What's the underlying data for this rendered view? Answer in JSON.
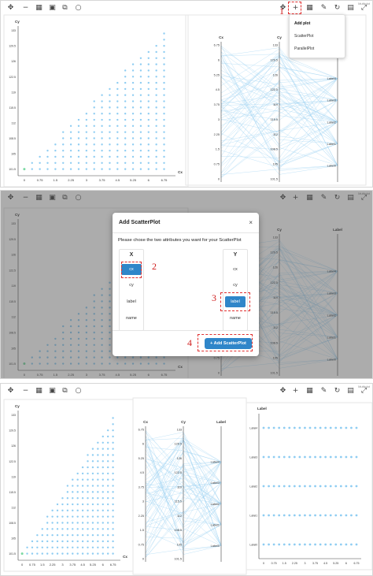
{
  "toolbar_tag": "Multiplot",
  "toolbar_icons": [
    "move-arrows-icon",
    "minus-icon",
    "grid-icon",
    "image-icon",
    "swap-icon",
    "circle-icon"
  ],
  "toolbar_right_icons": [
    "move-arrows-icon",
    "plus-icon",
    "table-icon",
    "brush-icon",
    "refresh-icon",
    "save-icon",
    "fullscreen-icon"
  ],
  "scatter": {
    "title_x": "Cx",
    "title_y": "Cy",
    "x_ticks": [
      "0",
      "0.75",
      "1.5",
      "2.25",
      "3",
      "3.75",
      "4.5",
      "5.25",
      "6",
      "6.75"
    ],
    "y_ticks": [
      "101.5",
      "105",
      "108.5",
      "112",
      "115.5",
      "119",
      "122.5",
      "126",
      "129.5",
      "133"
    ],
    "xlim": [
      -0.3,
      7.3
    ],
    "ylim": [
      100,
      134
    ],
    "point_color": "#8fcdf2"
  },
  "parallel": {
    "axes": [
      "Cx",
      "Cy",
      "Label"
    ],
    "cx_ticks": [
      "0",
      "0.75",
      "1.5",
      "2.25",
      "3",
      "3.75",
      "4.5",
      "5.25",
      "6",
      "6.75"
    ],
    "cy_ticks": [
      "101.5",
      "105",
      "108.5",
      "112",
      "115.5",
      "119",
      "122.5",
      "126",
      "129.5",
      "133"
    ],
    "label_ticks": [
      "Label0",
      "Label1",
      "Label2",
      "Label3",
      "Label4"
    ],
    "line_color": "#9fd3f3"
  },
  "labelplot": {
    "title_y": "Label",
    "x_ticks": [
      "0",
      "0.75",
      "1.5",
      "2.25",
      "3",
      "3.75",
      "4.5",
      "5.25",
      "6",
      "6.75"
    ],
    "y_ticks": [
      "Label0",
      "Label1",
      "Label2",
      "Label3",
      "Label4"
    ]
  },
  "dropdown": {
    "items": [
      "Add plot",
      "ScatterPlot",
      "ParallelPlot"
    ]
  },
  "annotations": [
    "1",
    "2",
    "3",
    "4"
  ],
  "modal": {
    "title": "Add ScatterPlot",
    "close": "×",
    "description": "Please chose the two attributes you want for your ScatterPlot",
    "x_header": "X",
    "y_header": "Y",
    "x_options": [
      "cx",
      "cy",
      "label",
      "name"
    ],
    "y_options": [
      "cx",
      "cy",
      "label",
      "name"
    ],
    "x_selected": "cx",
    "y_selected": "label",
    "add_button": "+ Add ScatterPlot"
  }
}
